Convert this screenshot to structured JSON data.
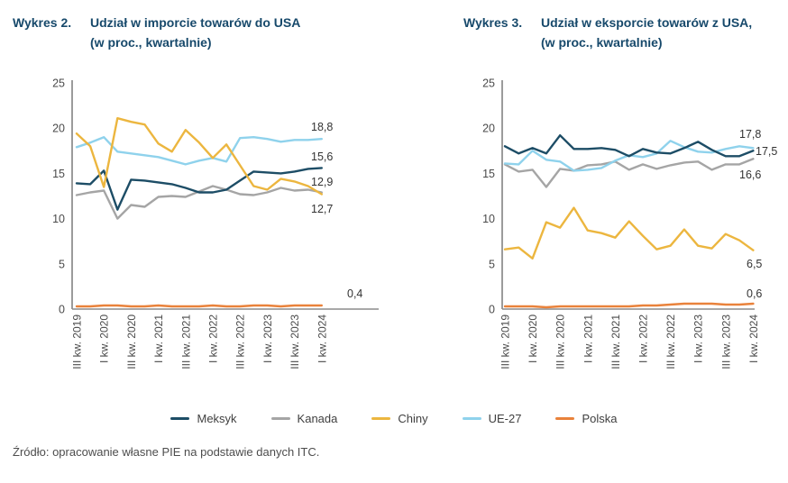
{
  "titles": [
    {
      "label": "Wykres 2.",
      "line1": "Udział w imporcie towarów do USA",
      "line2": "(w proc., kwartalnie)"
    },
    {
      "label": "Wykres 3.",
      "line1": "Udział w eksporcie towarów z USA,",
      "line2": "(w proc., kwartalnie)"
    }
  ],
  "legend": {
    "items": [
      {
        "name": "Meksyk",
        "color": "#1D4D66"
      },
      {
        "name": "Kanada",
        "color": "#A5A5A5"
      },
      {
        "name": "Chiny",
        "color": "#ECB63F"
      },
      {
        "name": "UE-27",
        "color": "#8FD2EC"
      },
      {
        "name": "Polska",
        "color": "#E9823B"
      }
    ]
  },
  "source": "Źródło: opracowanie własne PIE na podstawie danych ITC.",
  "chart_data": [
    {
      "type": "line",
      "title": "Wykres 2. Udział w imporcie towarów do USA (w proc., kwartalnie)",
      "ylim": [
        0,
        25
      ],
      "yticks": [
        0,
        5,
        10,
        15,
        20,
        25
      ],
      "grid": false,
      "legend_position": "bottom-shared",
      "x_tick_labels": [
        "III kw. 2019",
        "I kw. 2020",
        "III kw. 2020",
        "I kw. 2021",
        "III kw. 2021",
        "I kw. 2022",
        "III kw. 2022",
        "I kw. 2023",
        "III kw. 2023",
        "I kw. 2024"
      ],
      "points_per_series": 19,
      "series": [
        {
          "name": "Meksyk",
          "color": "#1D4D66",
          "end_label": "15,6",
          "values": [
            13.9,
            13.8,
            15.3,
            11.0,
            14.3,
            14.2,
            14.0,
            13.8,
            13.4,
            12.9,
            12.9,
            13.2,
            14.2,
            15.2,
            15.1,
            15.0,
            15.2,
            15.5,
            15.6
          ]
        },
        {
          "name": "Kanada",
          "color": "#A5A5A5",
          "end_label": "12,9",
          "values": [
            12.6,
            12.9,
            13.1,
            10.0,
            11.5,
            11.3,
            12.4,
            12.5,
            12.4,
            13.0,
            13.6,
            13.2,
            12.7,
            12.6,
            12.9,
            13.4,
            13.1,
            13.2,
            12.9
          ]
        },
        {
          "name": "Chiny",
          "color": "#ECB63F",
          "end_label": "12,7",
          "values": [
            19.4,
            18.0,
            13.5,
            21.1,
            20.7,
            20.4,
            18.3,
            17.4,
            19.8,
            18.4,
            16.7,
            18.2,
            15.9,
            13.6,
            13.2,
            14.4,
            14.1,
            13.6,
            12.7
          ]
        },
        {
          "name": "UE-27",
          "color": "#8FD2EC",
          "end_label": "18,8",
          "values": [
            17.9,
            18.4,
            19.0,
            17.4,
            17.2,
            17.0,
            16.8,
            16.4,
            16.0,
            16.4,
            16.7,
            16.3,
            18.9,
            19.0,
            18.8,
            18.5,
            18.7,
            18.7,
            18.8
          ]
        },
        {
          "name": "Polska",
          "color": "#E9823B",
          "end_label": "0,4",
          "values": [
            0.3,
            0.3,
            0.4,
            0.4,
            0.3,
            0.3,
            0.4,
            0.3,
            0.3,
            0.3,
            0.4,
            0.3,
            0.3,
            0.4,
            0.4,
            0.3,
            0.4,
            0.4,
            0.4
          ]
        }
      ]
    },
    {
      "type": "line",
      "title": "Wykres 3. Udział w eksporcie towarów z USA, (w proc., kwartalnie)",
      "ylim": [
        0,
        25
      ],
      "yticks": [
        0,
        5,
        10,
        15,
        20,
        25
      ],
      "grid": false,
      "legend_position": "bottom-shared",
      "x_tick_labels": [
        "III kw. 2019",
        "I kw. 2020",
        "III kw. 2020",
        "I kw. 2021",
        "III kw. 2021",
        "I kw. 2022",
        "III kw. 2022",
        "I kw. 2023",
        "III kw. 2023",
        "I kw. 2024"
      ],
      "points_per_series": 19,
      "series": [
        {
          "name": "Meksyk",
          "color": "#1D4D66",
          "end_label": "17,5",
          "values": [
            18.0,
            17.2,
            17.8,
            17.2,
            19.2,
            17.7,
            17.7,
            17.8,
            17.6,
            16.9,
            17.7,
            17.3,
            17.2,
            17.8,
            18.5,
            17.6,
            16.9,
            16.9,
            17.5
          ]
        },
        {
          "name": "Kanada",
          "color": "#A5A5A5",
          "end_label": "16,6",
          "values": [
            16.0,
            15.2,
            15.4,
            13.5,
            15.5,
            15.3,
            15.9,
            16.0,
            16.3,
            15.4,
            16.0,
            15.5,
            15.9,
            16.2,
            16.3,
            15.4,
            16.0,
            16.0,
            16.6
          ]
        },
        {
          "name": "Chiny",
          "color": "#ECB63F",
          "end_label": "6,5",
          "values": [
            6.6,
            6.8,
            5.6,
            9.6,
            9.0,
            11.2,
            8.7,
            8.4,
            7.9,
            9.7,
            8.1,
            6.6,
            7.0,
            8.8,
            7.0,
            6.7,
            8.3,
            7.6,
            6.5
          ]
        },
        {
          "name": "UE-27",
          "color": "#8FD2EC",
          "end_label": "17,8",
          "values": [
            16.1,
            16.0,
            17.5,
            16.5,
            16.3,
            15.3,
            15.4,
            15.6,
            16.4,
            17.0,
            16.8,
            17.2,
            18.6,
            17.9,
            17.4,
            17.3,
            17.7,
            18.0,
            17.8
          ]
        },
        {
          "name": "Polska",
          "color": "#E9823B",
          "end_label": "0,6",
          "values": [
            0.3,
            0.3,
            0.3,
            0.2,
            0.3,
            0.3,
            0.3,
            0.3,
            0.3,
            0.3,
            0.4,
            0.4,
            0.5,
            0.6,
            0.6,
            0.6,
            0.5,
            0.5,
            0.6
          ]
        }
      ]
    }
  ]
}
